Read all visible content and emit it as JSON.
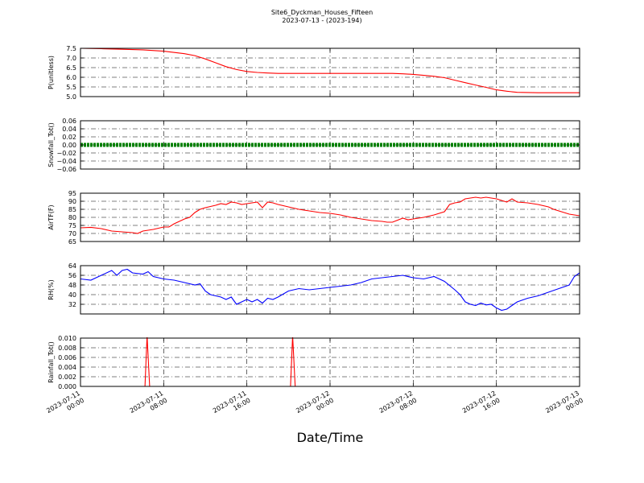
{
  "figure": {
    "title": "Site6_Dyckman_Houses_Fifteen",
    "subtitle": "2023-07-13 - (2023-194)",
    "xlabel": "Date/Time"
  },
  "chart_data": {
    "type": "line",
    "shared_x": {
      "ticks": [
        "2023-07-11 00:00",
        "2023-07-11 08:00",
        "2023-07-11 16:00",
        "2023-07-12 00:00",
        "2023-07-12 08:00",
        "2023-07-12 16:00",
        "2023-07-13 00:00"
      ],
      "xlim": [
        0,
        48
      ],
      "unit": "hours since 2023-07-11 00:00"
    },
    "grid": true,
    "panels": [
      {
        "ylabel": "P(unitless)",
        "ylim": [
          5.0,
          7.5
        ],
        "yticks": [
          5.0,
          5.5,
          6.0,
          6.5,
          7.0,
          7.5
        ],
        "tick_labels": [
          "5.0",
          "5.5",
          "6.0",
          "6.5",
          "7.0",
          "7.5"
        ],
        "color": "#ff0000",
        "points": [
          [
            0,
            7.5
          ],
          [
            2,
            7.48
          ],
          [
            4,
            7.45
          ],
          [
            6,
            7.42
          ],
          [
            8,
            7.35
          ],
          [
            10,
            7.22
          ],
          [
            11,
            7.12
          ],
          [
            12,
            6.95
          ],
          [
            13,
            6.75
          ],
          [
            14,
            6.55
          ],
          [
            15,
            6.4
          ],
          [
            16,
            6.3
          ],
          [
            17,
            6.25
          ],
          [
            18,
            6.22
          ],
          [
            19,
            6.2
          ],
          [
            22,
            6.2
          ],
          [
            26,
            6.2
          ],
          [
            30,
            6.2
          ],
          [
            31,
            6.18
          ],
          [
            32,
            6.15
          ],
          [
            33,
            6.1
          ],
          [
            34,
            6.05
          ],
          [
            35,
            5.98
          ],
          [
            36,
            5.85
          ],
          [
            37,
            5.72
          ],
          [
            38,
            5.6
          ],
          [
            39,
            5.48
          ],
          [
            40,
            5.35
          ],
          [
            41,
            5.28
          ],
          [
            42,
            5.22
          ],
          [
            44,
            5.2
          ],
          [
            48,
            5.2
          ]
        ]
      },
      {
        "ylabel": "Snowfall_Tot()",
        "ylim": [
          -0.06,
          0.06
        ],
        "yticks": [
          -0.06,
          -0.04,
          -0.02,
          0.0,
          0.02,
          0.04,
          0.06
        ],
        "tick_labels": [
          "−0.06",
          "−0.04",
          "−0.02",
          "0.00",
          "0.02",
          "0.04",
          "0.06"
        ],
        "color": "#008000",
        "constant": 0.0,
        "style": "dotted-thick"
      },
      {
        "ylabel": "AirTF(F)",
        "ylim": [
          65,
          95
        ],
        "yticks": [
          65,
          70,
          75,
          80,
          85,
          90,
          95
        ],
        "tick_labels": [
          "65",
          "70",
          "75",
          "80",
          "85",
          "90",
          "95"
        ],
        "color": "#ff0000",
        "points": [
          [
            0,
            73.5
          ],
          [
            1,
            73.8
          ],
          [
            2,
            73
          ],
          [
            3,
            71.5
          ],
          [
            4,
            71
          ],
          [
            5,
            70.5
          ],
          [
            5.5,
            70
          ],
          [
            6,
            71.5
          ],
          [
            7,
            72.5
          ],
          [
            8,
            74
          ],
          [
            8.5,
            74
          ],
          [
            9,
            76
          ],
          [
            10,
            79
          ],
          [
            10.5,
            80
          ],
          [
            11,
            83
          ],
          [
            11.5,
            85
          ],
          [
            12,
            86
          ],
          [
            13,
            87.5
          ],
          [
            13.5,
            88.5
          ],
          [
            14,
            88
          ],
          [
            14.5,
            89.5
          ],
          [
            15,
            89
          ],
          [
            15.5,
            88
          ],
          [
            16,
            88.5
          ],
          [
            16.5,
            89
          ],
          [
            17,
            89.5
          ],
          [
            17.5,
            86
          ],
          [
            18,
            89.5
          ],
          [
            18.5,
            89
          ],
          [
            19,
            88
          ],
          [
            20,
            86.5
          ],
          [
            21,
            85
          ],
          [
            22,
            84
          ],
          [
            23,
            83
          ],
          [
            24,
            82.5
          ],
          [
            25,
            81.5
          ],
          [
            26,
            80
          ],
          [
            27,
            79
          ],
          [
            28,
            78
          ],
          [
            29,
            77.5
          ],
          [
            29.5,
            77
          ],
          [
            30,
            77
          ],
          [
            31,
            79.5
          ],
          [
            31.5,
            78.5
          ],
          [
            32,
            79
          ],
          [
            33,
            80
          ],
          [
            34,
            81.5
          ],
          [
            35,
            83.5
          ],
          [
            35.5,
            88
          ],
          [
            36,
            89
          ],
          [
            36.5,
            89.5
          ],
          [
            37,
            91.5
          ],
          [
            37.5,
            92
          ],
          [
            38,
            92.5
          ],
          [
            38.5,
            92
          ],
          [
            39,
            92.5
          ],
          [
            39.5,
            92
          ],
          [
            40,
            91.5
          ],
          [
            40.5,
            90.5
          ],
          [
            41,
            89.5
          ],
          [
            41.5,
            91.5
          ],
          [
            42,
            89.5
          ],
          [
            43,
            89
          ],
          [
            44,
            88
          ],
          [
            45,
            86.5
          ],
          [
            45.5,
            85
          ],
          [
            46,
            84
          ],
          [
            47,
            82
          ],
          [
            48,
            81
          ]
        ]
      },
      {
        "ylabel": "RH(%)",
        "ylim": [
          24,
          64
        ],
        "yticks": [
          32,
          40,
          48,
          56,
          64
        ],
        "tick_labels": [
          "32",
          "40",
          "48",
          "56",
          "64"
        ],
        "color": "#0000ff",
        "points": [
          [
            0,
            53
          ],
          [
            1,
            52
          ],
          [
            2,
            56
          ],
          [
            3,
            60
          ],
          [
            3.5,
            56
          ],
          [
            4,
            60
          ],
          [
            4.5,
            61
          ],
          [
            5,
            58
          ],
          [
            6,
            57
          ],
          [
            6.5,
            59
          ],
          [
            7,
            55
          ],
          [
            8,
            53
          ],
          [
            9,
            52
          ],
          [
            10,
            50
          ],
          [
            11,
            48
          ],
          [
            11.5,
            49
          ],
          [
            12,
            43
          ],
          [
            12.5,
            40
          ],
          [
            13,
            39
          ],
          [
            13.5,
            38
          ],
          [
            14,
            36
          ],
          [
            14.5,
            38
          ],
          [
            15,
            32
          ],
          [
            15.5,
            34
          ],
          [
            16,
            36
          ],
          [
            16.5,
            34
          ],
          [
            17,
            36
          ],
          [
            17.5,
            33
          ],
          [
            18,
            37
          ],
          [
            18.5,
            36
          ],
          [
            19,
            38
          ],
          [
            20,
            43
          ],
          [
            21,
            45
          ],
          [
            22,
            44
          ],
          [
            23,
            45
          ],
          [
            24,
            46
          ],
          [
            25,
            47
          ],
          [
            26,
            48
          ],
          [
            27,
            50
          ],
          [
            28,
            53
          ],
          [
            29,
            54
          ],
          [
            30,
            55
          ],
          [
            31,
            56
          ],
          [
            32,
            54
          ],
          [
            33,
            53
          ],
          [
            34,
            55
          ],
          [
            35,
            51
          ],
          [
            36,
            44
          ],
          [
            36.5,
            40
          ],
          [
            37,
            34
          ],
          [
            37.5,
            32
          ],
          [
            38,
            31
          ],
          [
            38.5,
            33
          ],
          [
            39,
            31.5
          ],
          [
            39.5,
            32
          ],
          [
            40,
            29
          ],
          [
            40.5,
            27
          ],
          [
            41,
            28
          ],
          [
            41.5,
            31
          ],
          [
            42,
            34
          ],
          [
            43,
            37
          ],
          [
            44,
            39
          ],
          [
            45,
            42
          ],
          [
            46,
            45
          ],
          [
            47,
            48
          ],
          [
            47.5,
            55
          ],
          [
            48,
            58
          ]
        ]
      },
      {
        "ylabel": "Rainfall_Tot()",
        "ylim": [
          0.0,
          0.01
        ],
        "yticks": [
          0.0,
          0.002,
          0.004,
          0.006,
          0.008,
          0.01
        ],
        "tick_labels": [
          "0.000",
          "0.002",
          "0.004",
          "0.006",
          "0.008",
          "0.010"
        ],
        "color": "#ff0000",
        "points": [
          [
            0,
            0
          ],
          [
            6.2,
            0
          ],
          [
            6.4,
            0.0105
          ],
          [
            6.65,
            0
          ],
          [
            20.2,
            0
          ],
          [
            20.4,
            0.0105
          ],
          [
            20.65,
            0
          ],
          [
            48,
            0
          ]
        ]
      }
    ]
  }
}
